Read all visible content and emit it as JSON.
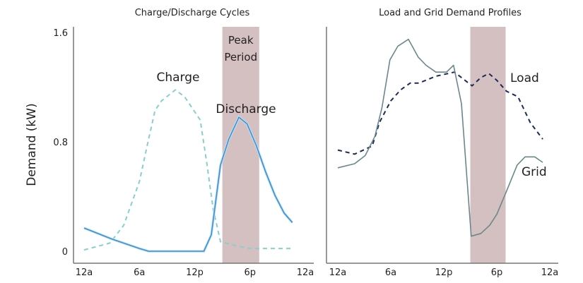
{
  "chart_data": [
    {
      "type": "line",
      "title": "Charge/Discharge Cycles",
      "xlabel": "",
      "ylabel": "Demand  (kW)",
      "xlim": [
        0,
        24
      ],
      "ylim": [
        0,
        1.6
      ],
      "x_ticks": [
        {
          "value": 0,
          "label": "12a"
        },
        {
          "value": 6,
          "label": "6a"
        },
        {
          "value": 12,
          "label": "12p"
        },
        {
          "value": 18,
          "label": "6p"
        },
        {
          "value": 24,
          "label": "12a"
        }
      ],
      "y_ticks": [
        {
          "value": 0,
          "label": "0"
        },
        {
          "value": 0.8,
          "label": "0.8"
        },
        {
          "value": 1.6,
          "label": "1.6"
        }
      ],
      "shaded_region": {
        "x": [
          15,
          19
        ],
        "label_line1": "Peak",
        "label_line2": "Period",
        "color": "#d5c0c1"
      },
      "grid": false,
      "series": [
        {
          "name": "Charge",
          "style": "dashed",
          "color": "#86d0cc",
          "x": [
            0,
            2.8,
            4.3,
            6,
            6.9,
            7.7,
            8.4,
            9.9,
            10.9,
            12.6,
            13.3,
            14,
            14.8,
            16.5,
            18,
            22.5
          ],
          "y": [
            0.01,
            0.06,
            0.19,
            0.51,
            0.79,
            1.03,
            1.1,
            1.18,
            1.13,
            0.96,
            0.65,
            0.31,
            0.07,
            0.04,
            0.02,
            0.02
          ]
        },
        {
          "name": "Discharge",
          "style": "solid",
          "color": "#3f8fd4",
          "x": [
            0,
            3,
            6,
            7,
            13,
            13.8,
            14.8,
            15.7,
            16.8,
            17.7,
            18.7,
            19.7,
            20.7,
            21.7,
            22.6
          ],
          "y": [
            0.17,
            0.09,
            0.02,
            0.0,
            0.0,
            0.12,
            0.63,
            0.82,
            0.98,
            0.93,
            0.77,
            0.58,
            0.41,
            0.28,
            0.21
          ]
        }
      ]
    },
    {
      "type": "line",
      "title": "Load and Grid Demand Profiles",
      "xlabel": "",
      "ylabel": "",
      "xlim": [
        0,
        24
      ],
      "ylim": [
        0,
        1.6
      ],
      "x_ticks": [
        {
          "value": 0,
          "label": "12a"
        },
        {
          "value": 6,
          "label": "6a"
        },
        {
          "value": 12,
          "label": "12p"
        },
        {
          "value": 18,
          "label": "6p"
        },
        {
          "value": 24,
          "label": "12a"
        }
      ],
      "shaded_region": {
        "x": [
          15,
          19
        ],
        "color": "#d5c0c1"
      },
      "grid": false,
      "series": [
        {
          "name": "Load",
          "style": "dashed",
          "color": "#1d2a5c",
          "x": [
            0,
            1.9,
            3.9,
            4.7,
            6,
            7.1,
            8.2,
            9.2,
            11.1,
            13.2,
            14,
            15.2,
            16.2,
            17.1,
            18,
            19.1,
            20.4,
            21.8,
            23.2
          ],
          "y": [
            0.74,
            0.71,
            0.77,
            0.94,
            1.1,
            1.18,
            1.23,
            1.23,
            1.28,
            1.31,
            1.27,
            1.21,
            1.27,
            1.3,
            1.25,
            1.17,
            1.13,
            0.94,
            0.82
          ]
        },
        {
          "name": "Grid",
          "style": "solid",
          "color": "#6a888c",
          "x": [
            0,
            1.9,
            3.1,
            4.2,
            5,
            5.9,
            6.8,
            8,
            9.1,
            10,
            11.1,
            12.3,
            13.1,
            14,
            15.1,
            16.2,
            17.2,
            18,
            19.1,
            20.3,
            21.2,
            22.3,
            23.2
          ],
          "y": [
            0.61,
            0.64,
            0.7,
            0.84,
            1.05,
            1.4,
            1.5,
            1.55,
            1.42,
            1.36,
            1.31,
            1.31,
            1.36,
            1.08,
            0.11,
            0.13,
            0.19,
            0.27,
            0.44,
            0.63,
            0.69,
            0.69,
            0.65
          ]
        }
      ]
    }
  ]
}
